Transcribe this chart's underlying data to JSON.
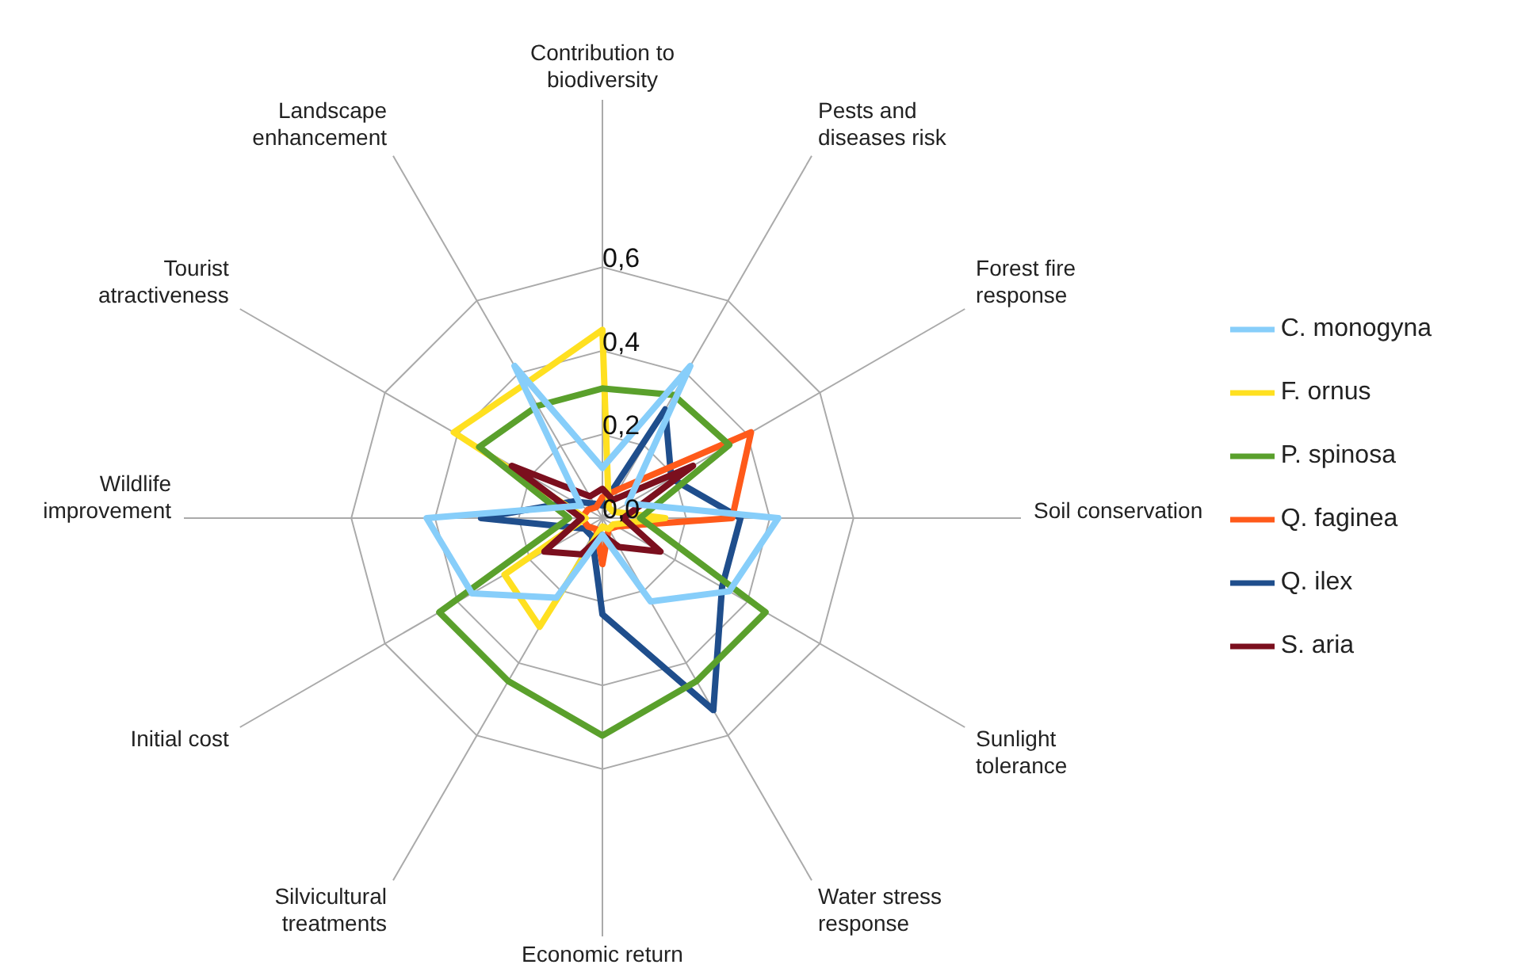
{
  "chart_data": {
    "type": "radar",
    "categories": [
      "Contribution to biodiversity",
      "Pests and diseases risk",
      "Forest fire response",
      "Soil conservation",
      "Sunlight tolerance",
      "Water stress response",
      "Economic return",
      "Silvicultural treatments",
      "Initial cost",
      "Wildlife improvement",
      "Tourist atractiveness",
      "Landscape enhancement"
    ],
    "series": [
      {
        "name": "Q. ilex",
        "color": "#1f4e8c",
        "values": [
          0.03,
          0.3,
          0.19,
          0.33,
          0.33,
          0.53,
          0.23,
          0.05,
          0.05,
          0.29,
          0.08,
          0.04
        ]
      },
      {
        "name": "Q. faginea",
        "color": "#ff5a1a",
        "values": [
          0.05,
          0.08,
          0.41,
          0.31,
          0.04,
          0.03,
          0.11,
          0.03,
          0.04,
          0.05,
          0.04,
          0.03
        ]
      },
      {
        "name": "F. ornus",
        "color": "#ffe020",
        "values": [
          0.45,
          0.03,
          0.03,
          0.15,
          0.03,
          0.03,
          0.02,
          0.3,
          0.27,
          0.04,
          0.41,
          0.37
        ]
      },
      {
        "name": "P. spinosa",
        "color": "#5aa02c",
        "values": [
          0.31,
          0.34,
          0.35,
          0.09,
          0.45,
          0.45,
          0.52,
          0.45,
          0.45,
          0.08,
          0.34,
          0.31
        ]
      },
      {
        "name": "S. aria",
        "color": "#7b0f1e",
        "values": [
          0.07,
          0.05,
          0.25,
          0.05,
          0.16,
          0.08,
          0.04,
          0.1,
          0.16,
          0.05,
          0.25,
          0.06
        ]
      },
      {
        "name": "C. monogyna",
        "color": "#87cefa",
        "values": [
          0.12,
          0.42,
          0.07,
          0.42,
          0.35,
          0.23,
          0.04,
          0.22,
          0.36,
          0.42,
          0.06,
          0.42
        ]
      }
    ],
    "ylim": [
      0,
      0.6
    ],
    "yticks": [
      {
        "value": 0,
        "label": "0,0"
      },
      {
        "value": 0.2,
        "label": "0,2"
      },
      {
        "value": 0.4,
        "label": "0,4"
      },
      {
        "value": 0.6,
        "label": "0,6"
      }
    ],
    "grid": true,
    "legend": "right",
    "marker": "none",
    "line_style": "solid"
  }
}
